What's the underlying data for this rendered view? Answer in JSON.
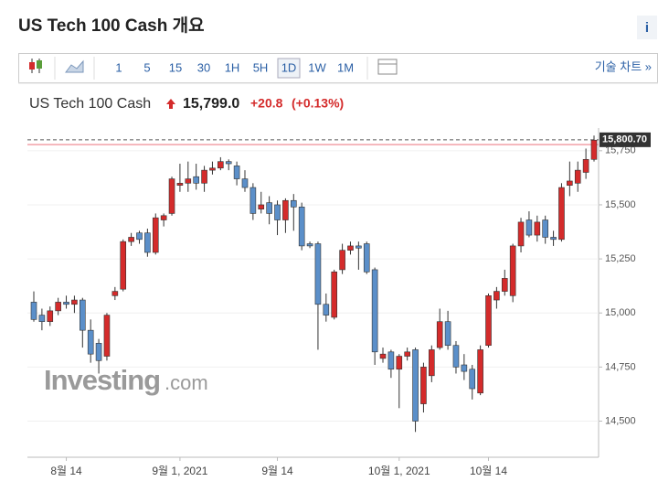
{
  "header": {
    "title": "US Tech 100 Cash 개요",
    "info": "i"
  },
  "toolbar": {
    "intervals": [
      "1",
      "5",
      "15",
      "30",
      "1H",
      "5H",
      "1D",
      "1W",
      "1M"
    ],
    "selected": "1D",
    "link": "기술 차트 »"
  },
  "chart_data": {
    "type": "candlestick",
    "title": "US Tech 100 Cash",
    "price": "15,799.0",
    "change": "+20.8",
    "change_pct": "(+0.13%)",
    "watermark": [
      "Investing",
      ".com"
    ],
    "up_color": "#d42b2b",
    "down_color": "#5b8fc9",
    "categories": [
      null,
      null,
      null,
      null,
      "8월 14",
      null,
      null,
      null,
      null,
      null,
      null,
      null,
      null,
      null,
      null,
      null,
      null,
      null,
      "9월 1, 2021",
      null,
      null,
      null,
      null,
      null,
      null,
      null,
      null,
      null,
      null,
      null,
      "9월 14",
      null,
      null,
      null,
      null,
      null,
      null,
      null,
      null,
      null,
      null,
      null,
      null,
      null,
      null,
      "10월 1, 2021",
      null,
      null,
      null,
      null,
      null,
      null,
      null,
      null,
      null,
      null,
      "10월 14",
      null,
      null,
      null,
      null,
      null,
      null,
      null,
      null,
      null,
      null,
      null,
      null,
      null
    ],
    "open": [
      15050,
      14990,
      14960,
      15010,
      15050,
      15040,
      15060,
      14920,
      14860,
      14800,
      15080,
      15110,
      15330,
      15370,
      15370,
      15280,
      15430,
      15460,
      15590,
      15600,
      15630,
      15600,
      15660,
      15670,
      15700,
      15680,
      15620,
      15580,
      15480,
      15510,
      15500,
      15430,
      15520,
      15490,
      15320,
      15320,
      15040,
      14980,
      15200,
      15290,
      15310,
      15320,
      15200,
      14790,
      14820,
      14740,
      14800,
      14830,
      14580,
      14710,
      14840,
      14960,
      14850,
      14760,
      14740,
      14630,
      14850,
      15060,
      15100,
      15080,
      15310,
      15430,
      15360,
      15430,
      15350,
      15340,
      15590,
      15600,
      15650,
      15710
    ],
    "high": [
      15100,
      15020,
      15030,
      15070,
      15080,
      15080,
      15070,
      14970,
      14880,
      15000,
      15120,
      15340,
      15370,
      15380,
      15390,
      15460,
      15460,
      15630,
      15690,
      15700,
      15690,
      15680,
      15700,
      15720,
      15710,
      15700,
      15660,
      15600,
      15560,
      15540,
      15520,
      15530,
      15550,
      15510,
      15330,
      15330,
      15090,
      15200,
      15320,
      15330,
      15330,
      15330,
      15210,
      14840,
      14830,
      14810,
      14840,
      14840,
      14770,
      14850,
      15020,
      15010,
      14870,
      14810,
      14760,
      14850,
      15090,
      15120,
      15200,
      15320,
      15440,
      15470,
      15450,
      15450,
      15380,
      15600,
      15700,
      15700,
      15760,
      15820
    ],
    "low": [
      14960,
      14920,
      14940,
      14990,
      15020,
      15000,
      14840,
      14770,
      14720,
      14780,
      15060,
      15100,
      15310,
      15320,
      15260,
      15270,
      15400,
      15450,
      15560,
      15560,
      15570,
      15560,
      15640,
      15660,
      15660,
      15590,
      15560,
      15430,
      15460,
      15410,
      15360,
      15370,
      15380,
      15290,
      15300,
      14830,
      14960,
      14970,
      15180,
      15270,
      15200,
      15180,
      14760,
      14770,
      14700,
      14560,
      14780,
      14450,
      14540,
      14680,
      14830,
      14830,
      14720,
      14690,
      14600,
      14620,
      14840,
      15020,
      15080,
      15050,
      15280,
      15350,
      15330,
      15320,
      15310,
      15330,
      15540,
      15560,
      15620,
      15700
    ],
    "close": [
      14970,
      14960,
      15010,
      15050,
      15040,
      15060,
      14920,
      14810,
      14780,
      14990,
      15100,
      15330,
      15350,
      15340,
      15280,
      15440,
      15450,
      15620,
      15600,
      15620,
      15600,
      15660,
      15670,
      15700,
      15690,
      15620,
      15580,
      15460,
      15500,
      15460,
      15430,
      15520,
      15490,
      15310,
      15310,
      15040,
      14990,
      15190,
      15290,
      15310,
      15300,
      15190,
      14820,
      14810,
      14740,
      14800,
      14820,
      14500,
      14750,
      14830,
      14960,
      14850,
      14750,
      14730,
      14650,
      14830,
      15080,
      15100,
      15160,
      15310,
      15420,
      15360,
      15420,
      15350,
      15340,
      15580,
      15610,
      15660,
      15710,
      15799
    ],
    "last_price": {
      "value": 15800.7,
      "label": "15,800.70"
    },
    "reference_line": 15778.2,
    "ylim": [
      14333,
      15855
    ],
    "yticks": [
      {
        "value": 14500,
        "label": "14,500"
      },
      {
        "value": 14750,
        "label": "14,750"
      },
      {
        "value": 15000,
        "label": "15,000"
      },
      {
        "value": 15250,
        "label": "15,250"
      },
      {
        "value": 15500,
        "label": "15,500"
      },
      {
        "value": 15750,
        "label": "15,750"
      }
    ]
  }
}
